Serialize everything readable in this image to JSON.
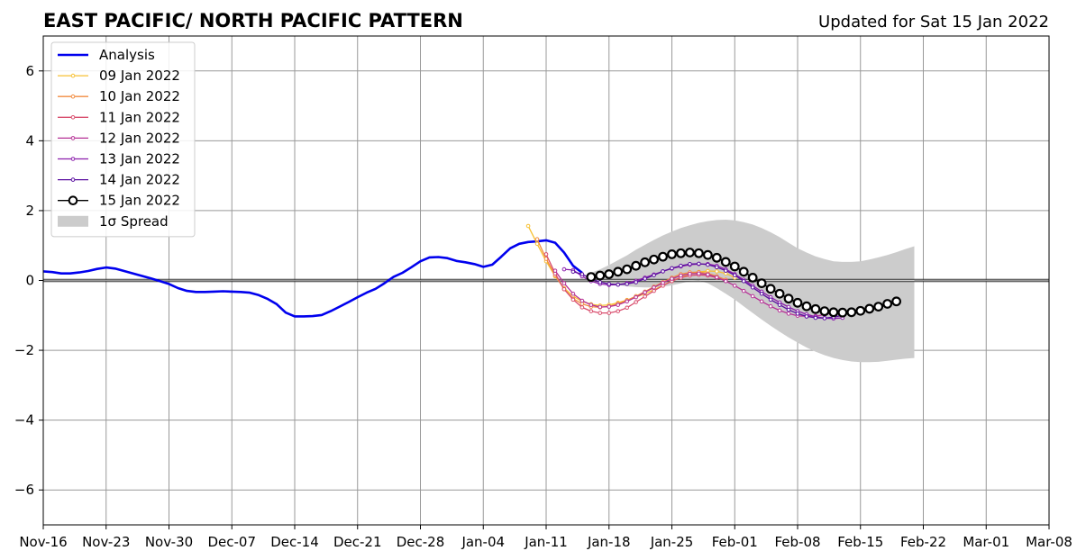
{
  "chart_data": {
    "type": "line",
    "title": "EAST PACIFIC/ NORTH PACIFIC PATTERN",
    "subtitle": "Updated for Sat 15 Jan 2022",
    "xlabel": "",
    "ylabel": "",
    "x_axis": {
      "type": "date",
      "range": [
        "2021-11-16",
        "2022-03-08"
      ],
      "tick_labels": [
        "Nov-16",
        "Nov-23",
        "Nov-30",
        "Dec-07",
        "Dec-14",
        "Dec-21",
        "Dec-28",
        "Jan-04",
        "Jan-11",
        "Jan-18",
        "Jan-25",
        "Feb-01",
        "Feb-08",
        "Feb-15",
        "Feb-22",
        "Mar-01",
        "Mar-08"
      ]
    },
    "y_axis": {
      "range": [
        -7,
        7
      ],
      "ticks": [
        -6,
        -4,
        -2,
        0,
        2,
        4,
        6
      ],
      "tick_labels": [
        "−6",
        "−4",
        "−2",
        "0",
        "2",
        "4",
        "6"
      ]
    },
    "grid": true,
    "zero_line": true,
    "legend_placement": "top-left",
    "series": [
      {
        "name": "Analysis",
        "color": "#0000ee",
        "style": "line",
        "start_date": "2021-11-16",
        "values": [
          0.26,
          0.24,
          0.2,
          0.2,
          0.23,
          0.27,
          0.33,
          0.37,
          0.34,
          0.27,
          0.2,
          0.13,
          0.06,
          -0.02,
          -0.1,
          -0.22,
          -0.3,
          -0.33,
          -0.33,
          -0.32,
          -0.31,
          -0.32,
          -0.33,
          -0.35,
          -0.42,
          -0.53,
          -0.68,
          -0.92,
          -1.03,
          -1.03,
          -1.02,
          -0.99,
          -0.88,
          -0.75,
          -0.62,
          -0.48,
          -0.35,
          -0.24,
          -0.08,
          0.1,
          0.22,
          0.38,
          0.55,
          0.66,
          0.67,
          0.64,
          0.56,
          0.52,
          0.47,
          0.39,
          0.45,
          0.68,
          0.92,
          1.05,
          1.1,
          1.12,
          1.15,
          1.08,
          0.8,
          0.42,
          0.22
        ]
      },
      {
        "name": "09 Jan 2022",
        "color": "#f7c133",
        "style": "small-markers",
        "start_date": "2022-01-09",
        "values": [
          1.56,
          1.05,
          0.55,
          0.12,
          -0.22,
          -0.45,
          -0.6,
          -0.68,
          -0.72,
          -0.7,
          -0.64,
          -0.56,
          -0.48,
          -0.38,
          -0.27,
          -0.14,
          -0.02,
          0.09,
          0.18,
          0.24,
          0.27,
          0.26,
          0.2,
          0.08
        ]
      },
      {
        "name": "10 Jan 2022",
        "color": "#f28c40",
        "style": "small-markers",
        "start_date": "2022-01-10",
        "values": [
          1.18,
          0.62,
          0.15,
          -0.25,
          -0.52,
          -0.67,
          -0.75,
          -0.77,
          -0.74,
          -0.67,
          -0.57,
          -0.45,
          -0.32,
          -0.18,
          -0.05,
          0.08,
          0.18,
          0.23,
          0.24,
          0.2,
          0.12,
          0.02
        ]
      },
      {
        "name": "11 Jan 2022",
        "color": "#d94e6e",
        "style": "small-markers",
        "start_date": "2022-01-11",
        "values": [
          0.75,
          0.2,
          -0.25,
          -0.55,
          -0.77,
          -0.88,
          -0.93,
          -0.93,
          -0.88,
          -0.78,
          -0.62,
          -0.46,
          -0.3,
          -0.15,
          -0.02,
          0.08,
          0.14,
          0.16,
          0.14,
          0.08,
          -0.01
        ]
      },
      {
        "name": "12 Jan 2022",
        "color": "#b63196",
        "style": "small-markers",
        "start_date": "2022-01-12",
        "values": [
          0.28,
          -0.08,
          -0.38,
          -0.58,
          -0.7,
          -0.76,
          -0.75,
          -0.7,
          -0.6,
          -0.48,
          -0.34,
          -0.2,
          -0.07,
          0.05,
          0.14,
          0.19,
          0.2,
          0.17,
          0.09,
          -0.02,
          -0.15,
          -0.3,
          -0.45,
          -0.6,
          -0.74,
          -0.86,
          -0.95,
          -1.01,
          -1.03,
          -1.02,
          -0.98,
          -0.92
        ]
      },
      {
        "name": "13 Jan 2022",
        "color": "#8c1fac",
        "style": "small-markers",
        "start_date": "2022-01-13",
        "values": [
          0.32,
          0.3,
          0.12,
          -0.02,
          -0.1,
          -0.13,
          -0.12,
          -0.08,
          -0.01,
          0.08,
          0.17,
          0.26,
          0.34,
          0.4,
          0.45,
          0.47,
          0.47,
          0.42,
          0.32,
          0.18,
          0.02,
          -0.15,
          -0.32,
          -0.48,
          -0.63,
          -0.76,
          -0.88,
          -0.97,
          -1.04,
          -1.08,
          -1.09,
          -1.07
        ]
      },
      {
        "name": "14 Jan 2022",
        "color": "#5a0fa0",
        "style": "small-markers",
        "start_date": "2022-01-14",
        "values": [
          0.25,
          0.18,
          0.05,
          -0.05,
          -0.1,
          -0.12,
          -0.1,
          -0.05,
          0.05,
          0.15,
          0.26,
          0.35,
          0.42,
          0.47,
          0.48,
          0.45,
          0.38,
          0.28,
          0.15,
          -0.02,
          -0.2,
          -0.38,
          -0.55,
          -0.7,
          -0.84,
          -0.95,
          -1.03,
          -1.07,
          -1.08,
          -1.05,
          -1.0
        ]
      },
      {
        "name": "15 Jan 2022",
        "color": "#000000",
        "style": "large-markers",
        "start_date": "2022-01-16",
        "values": [
          0.1,
          0.14,
          0.18,
          0.25,
          0.32,
          0.42,
          0.52,
          0.6,
          0.68,
          0.75,
          0.78,
          0.8,
          0.78,
          0.73,
          0.65,
          0.53,
          0.4,
          0.25,
          0.08,
          -0.08,
          -0.24,
          -0.38,
          -0.52,
          -0.64,
          -0.74,
          -0.82,
          -0.88,
          -0.91,
          -0.92,
          -0.91,
          -0.87,
          -0.81,
          -0.75,
          -0.67,
          -0.6
        ]
      }
    ],
    "spread": {
      "name": "1σ Spread",
      "color": "#cccccc",
      "start_date": "2022-01-16",
      "upper": [
        0.22,
        0.32,
        0.44,
        0.58,
        0.72,
        0.88,
        1.02,
        1.16,
        1.29,
        1.4,
        1.5,
        1.58,
        1.65,
        1.7,
        1.73,
        1.74,
        1.72,
        1.67,
        1.6,
        1.5,
        1.38,
        1.24,
        1.08,
        0.92,
        0.8,
        0.69,
        0.61,
        0.55,
        0.53,
        0.53,
        0.55,
        0.6,
        0.66,
        0.73,
        0.81,
        0.9,
        0.98
      ],
      "lower": [
        -0.02,
        -0.04,
        -0.08,
        -0.13,
        -0.17,
        -0.19,
        -0.2,
        -0.2,
        -0.18,
        -0.14,
        -0.08,
        -0.02,
        0.0,
        -0.08,
        -0.22,
        -0.38,
        -0.55,
        -0.74,
        -0.93,
        -1.12,
        -1.3,
        -1.47,
        -1.63,
        -1.78,
        -1.92,
        -2.04,
        -2.14,
        -2.22,
        -2.28,
        -2.32,
        -2.34,
        -2.34,
        -2.33,
        -2.3,
        -2.27,
        -2.24,
        -2.22
      ]
    }
  }
}
